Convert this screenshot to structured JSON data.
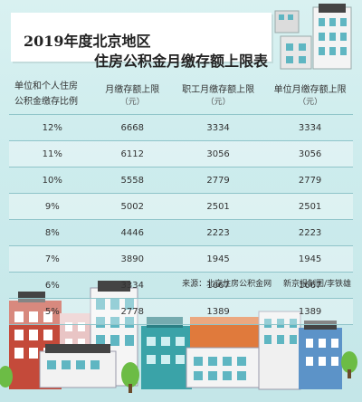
{
  "title": {
    "line1": "2019年度北京地区",
    "line2": "住房公积金月缴存额上限表"
  },
  "table": {
    "headers": {
      "rate": [
        "单位和个人住房",
        "公积金缴存比例"
      ],
      "total": "月缴存额上限",
      "employee": "职工月缴存额上限",
      "employer": "单位月缴存额上限",
      "unit": "（元）"
    },
    "rows": [
      {
        "rate": "12%",
        "total": "6668",
        "employee": "3334",
        "employer": "3334"
      },
      {
        "rate": "11%",
        "total": "6112",
        "employee": "3056",
        "employer": "3056"
      },
      {
        "rate": "10%",
        "total": "5558",
        "employee": "2779",
        "employer": "2779"
      },
      {
        "rate": "9%",
        "total": "5002",
        "employee": "2501",
        "employer": "2501"
      },
      {
        "rate": "8%",
        "total": "4446",
        "employee": "2223",
        "employer": "2223"
      },
      {
        "rate": "7%",
        "total": "3890",
        "employee": "1945",
        "employer": "1945"
      },
      {
        "rate": "6%",
        "total": "3334",
        "employee": "1667",
        "employer": "1667"
      },
      {
        "rate": "5%",
        "total": "2778",
        "employee": "1389",
        "employer": "1389"
      }
    ]
  },
  "source": {
    "origin": "来源：北京住房公积金网",
    "credit": "新京报制图/李铁雄"
  },
  "colors": {
    "background": "#cdeced",
    "rule": "#8fc4c9",
    "building_red": "#c44a3a",
    "building_teal": "#3aa3a8",
    "building_orange": "#e07a3c",
    "tree": "#6cbc45"
  }
}
